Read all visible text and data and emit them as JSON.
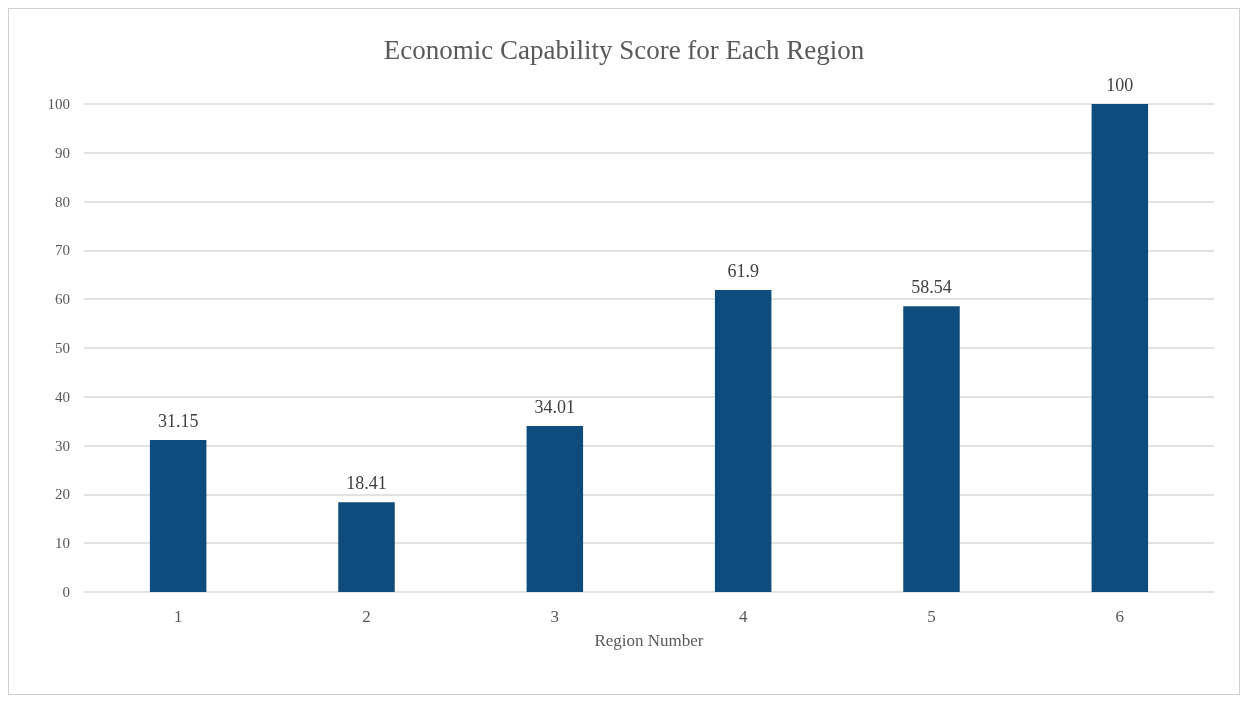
{
  "chart_data": {
    "type": "bar",
    "title": "Economic Capability Score for Each Region",
    "xlabel": "Region Number",
    "categories": [
      "1",
      "2",
      "3",
      "4",
      "5",
      "6"
    ],
    "values": [
      31.15,
      18.41,
      34.01,
      61.9,
      58.54,
      100
    ],
    "color": "#0e4c7d",
    "ylim": [
      0,
      100
    ],
    "yticks": [
      0,
      10,
      20,
      30,
      40,
      50,
      60,
      70,
      80,
      90,
      100
    ],
    "grid": "y",
    "data_labels": true
  }
}
